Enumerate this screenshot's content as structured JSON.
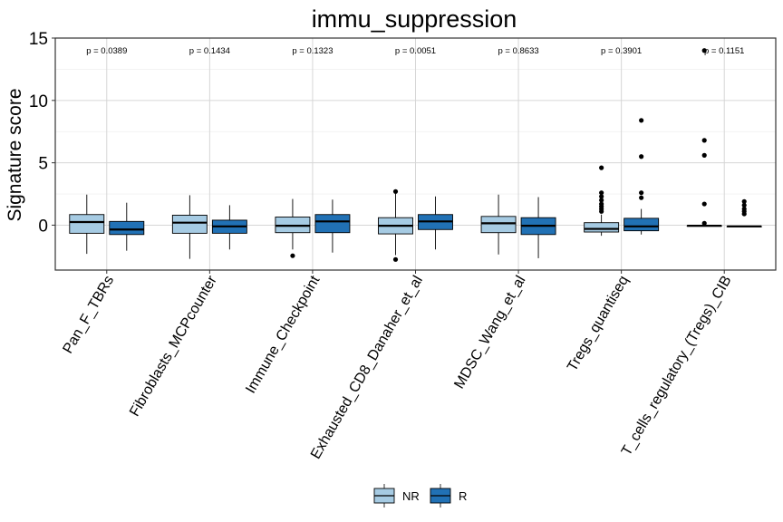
{
  "chart_data": {
    "type": "boxplot",
    "title": "immu_suppression",
    "xlabel": "",
    "ylabel": "Signature score",
    "ylim": [
      -3.6,
      15
    ],
    "yticks": [
      0,
      5,
      10,
      15
    ],
    "grid": true,
    "legend_position": "bottom",
    "legend": [
      {
        "name": "NR",
        "color": "#a6cbe3"
      },
      {
        "name": "R",
        "color": "#2171b5"
      }
    ],
    "categories": [
      "Pan_F_TBRs",
      "Fibroblasts_MCPcounter",
      "Immune_Checkpoint",
      "Exhausted_CD8_Danaher_et_al",
      "MDSC_Wang_et_al",
      "Tregs_quantiseq",
      "T_cells_regulatory_(Tregs)_CIB"
    ],
    "p_values": [
      "p = 0.0389",
      "p = 0.1434",
      "p = 0.1323",
      "p = 0.0051",
      "p = 0.8633",
      "p = 0.3901",
      "p = 0.1151"
    ],
    "series": [
      {
        "name": "NR",
        "boxes": [
          {
            "whislo": -2.3,
            "q1": -0.65,
            "med": 0.25,
            "q3": 0.85,
            "whishi": 2.45,
            "outliers": []
          },
          {
            "whislo": -2.7,
            "q1": -0.65,
            "med": 0.2,
            "q3": 0.8,
            "whishi": 2.4,
            "outliers": []
          },
          {
            "whislo": -1.95,
            "q1": -0.6,
            "med": -0.05,
            "q3": 0.65,
            "whishi": 2.1,
            "outliers": [
              -2.45
            ]
          },
          {
            "whislo": -2.4,
            "q1": -0.7,
            "med": -0.05,
            "q3": 0.6,
            "whishi": 2.6,
            "outliers": [
              2.7,
              -2.75
            ]
          },
          {
            "whislo": -2.35,
            "q1": -0.6,
            "med": 0.15,
            "q3": 0.7,
            "whishi": 2.45,
            "outliers": []
          },
          {
            "whislo": -0.85,
            "q1": -0.55,
            "med": -0.3,
            "q3": 0.2,
            "whishi": 0.85,
            "outliers": [
              1.1,
              1.3,
              1.5,
              1.7,
              2.0,
              2.3,
              2.6,
              4.6
            ]
          },
          {
            "whislo": -0.05,
            "q1": -0.05,
            "med": -0.05,
            "q3": -0.05,
            "whishi": -0.05,
            "outliers": [
              0.15,
              1.7,
              5.6,
              6.8,
              14.0
            ]
          }
        ]
      },
      {
        "name": "R",
        "boxes": [
          {
            "whislo": -2.05,
            "q1": -0.75,
            "med": -0.35,
            "q3": 0.3,
            "whishi": 1.8,
            "outliers": []
          },
          {
            "whislo": -1.95,
            "q1": -0.65,
            "med": -0.1,
            "q3": 0.4,
            "whishi": 1.6,
            "outliers": []
          },
          {
            "whislo": -2.2,
            "q1": -0.6,
            "med": 0.3,
            "q3": 0.85,
            "whishi": 2.05,
            "outliers": []
          },
          {
            "whislo": -1.95,
            "q1": -0.35,
            "med": 0.3,
            "q3": 0.85,
            "whishi": 2.3,
            "outliers": []
          },
          {
            "whislo": -2.65,
            "q1": -0.75,
            "med": -0.05,
            "q3": 0.6,
            "whishi": 2.25,
            "outliers": []
          },
          {
            "whislo": -0.75,
            "q1": -0.45,
            "med": -0.1,
            "q3": 0.55,
            "whishi": 1.3,
            "outliers": [
              2.2,
              2.6,
              5.5,
              8.4
            ]
          },
          {
            "whislo": -0.1,
            "q1": -0.1,
            "med": -0.1,
            "q3": -0.1,
            "whishi": -0.1,
            "outliers": [
              0.9,
              1.1,
              1.3,
              1.6,
              1.9
            ]
          }
        ]
      }
    ]
  }
}
